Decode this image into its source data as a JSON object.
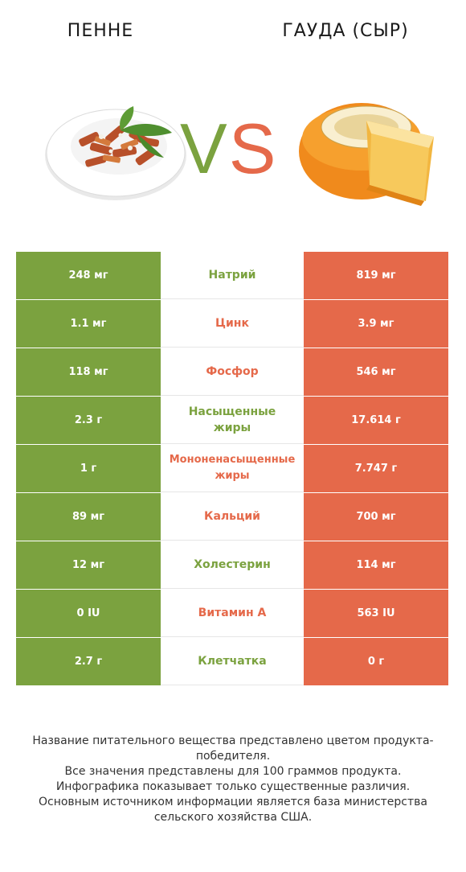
{
  "header": {
    "left_title": "ПЕННЕ",
    "right_title": "ГАУДА (СЫР)",
    "vs_v": "V",
    "vs_s": "S"
  },
  "colors": {
    "winner_left": "#7ba23f",
    "winner_right": "#e5694a"
  },
  "rows": [
    {
      "left": "248 мг",
      "label": "Натрий",
      "right": "819 мг",
      "winner": "left"
    },
    {
      "left": "1.1 мг",
      "label": "Цинк",
      "right": "3.9 мг",
      "winner": "right"
    },
    {
      "left": "118 мг",
      "label": "Фосфор",
      "right": "546 мг",
      "winner": "right"
    },
    {
      "left": "2.3 г",
      "label": "Насыщенные жиры",
      "right": "17.614 г",
      "winner": "left"
    },
    {
      "left": "1 г",
      "label": "Мононенасыщенные жиры",
      "right": "7.747 г",
      "winner": "right"
    },
    {
      "left": "89 мг",
      "label": "Кальций",
      "right": "700 мг",
      "winner": "right"
    },
    {
      "left": "12 мг",
      "label": "Холестерин",
      "right": "114 мг",
      "winner": "left"
    },
    {
      "left": "0 IU",
      "label": "Витамин A",
      "right": "563 IU",
      "winner": "right"
    },
    {
      "left": "2.7 г",
      "label": "Клетчатка",
      "right": "0 г",
      "winner": "left"
    }
  ],
  "footer": {
    "line1": "Название питательного вещества представлено цветом продукта-победителя.",
    "line2": "Все значения представлены для 100 граммов продукта.",
    "line3": "Инфографика показывает только существенные различия.",
    "line4": "Основным источником информации является база министерства сельского хозяйства США."
  }
}
